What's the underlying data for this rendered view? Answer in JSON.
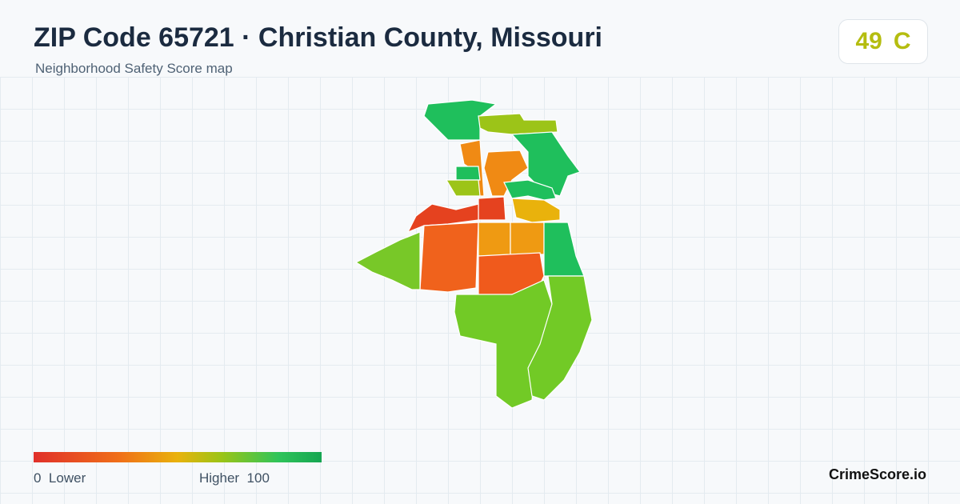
{
  "header": {
    "title": "ZIP Code 65721 · Christian County, Missouri",
    "subtitle": "Neighborhood Safety Score map"
  },
  "score": {
    "value": "49",
    "grade": "C"
  },
  "legend": {
    "min": "0",
    "low_label": "Lower",
    "high_label": "Higher",
    "max": "100"
  },
  "brand": "CrimeScore.io"
}
